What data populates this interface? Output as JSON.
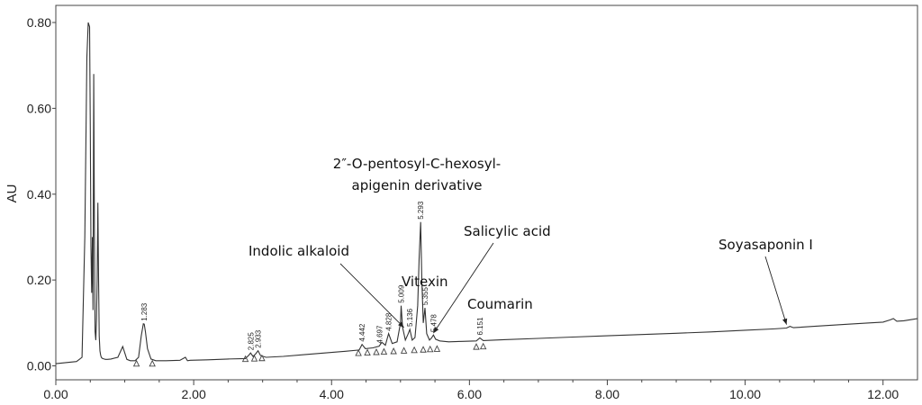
{
  "chart_data": {
    "type": "line",
    "title": "",
    "xlabel": "",
    "ylabel": "AU",
    "xlim": [
      0.0,
      12.5
    ],
    "ylim": [
      -0.05,
      0.82
    ],
    "x_ticks": [
      0,
      2,
      4,
      6,
      8,
      10,
      12
    ],
    "x_tick_labels": [
      "0.00",
      "2.00",
      "4.00",
      "6.00",
      "8.00",
      "10.00",
      "12.00"
    ],
    "y_ticks": [
      0,
      0.2,
      0.4,
      0.6,
      0.8
    ],
    "y_tick_labels": [
      "0.00",
      "0.20",
      "0.40",
      "0.60",
      "0.80"
    ],
    "grid": false,
    "series": [
      {
        "x": [
          0.0,
          0.3,
          0.38,
          0.42,
          0.45,
          0.47,
          0.49,
          0.5,
          0.51,
          0.52,
          0.53,
          0.54,
          0.55,
          0.56,
          0.57,
          0.58,
          0.59,
          0.6,
          0.61,
          0.62,
          0.63,
          0.64,
          0.65,
          0.66,
          0.67,
          0.68,
          0.7,
          0.72,
          0.75,
          0.8,
          0.9,
          0.97,
          1.0,
          1.03,
          1.08,
          1.15,
          1.2,
          1.24,
          1.27,
          1.283,
          1.3,
          1.33,
          1.38,
          1.45,
          1.6,
          1.8,
          1.88,
          1.91,
          1.95,
          2.2,
          2.5,
          2.75,
          2.8,
          2.825,
          2.86,
          2.9,
          2.933,
          2.97,
          3.05,
          3.3,
          3.6,
          3.9,
          4.2,
          4.4,
          4.442,
          4.49,
          4.6,
          4.69,
          4.73,
          4.78,
          4.828,
          4.88,
          4.95,
          5.0,
          5.009,
          5.03,
          5.07,
          5.11,
          5.136,
          5.17,
          5.21,
          5.25,
          5.27,
          5.293,
          5.31,
          5.33,
          5.355,
          5.38,
          5.42,
          5.45,
          5.478,
          5.51,
          5.57,
          5.7,
          5.9,
          6.1,
          6.151,
          6.2,
          6.5,
          7.0,
          7.5,
          8.0,
          8.5,
          9.0,
          9.5,
          10.0,
          10.4,
          10.6,
          10.65,
          10.7,
          11.0,
          11.5,
          11.8,
          12.0,
          12.1,
          12.15,
          12.2,
          12.3,
          12.5
        ],
        "y": [
          0.005,
          0.01,
          0.02,
          0.3,
          0.72,
          0.8,
          0.79,
          0.55,
          0.28,
          0.17,
          0.3,
          0.13,
          0.68,
          0.3,
          0.08,
          0.06,
          0.11,
          0.2,
          0.38,
          0.2,
          0.07,
          0.035,
          0.025,
          0.02,
          0.018,
          0.017,
          0.016,
          0.015,
          0.015,
          0.016,
          0.02,
          0.045,
          0.03,
          0.015,
          0.012,
          0.012,
          0.02,
          0.07,
          0.098,
          0.097,
          0.08,
          0.04,
          0.016,
          0.012,
          0.012,
          0.013,
          0.02,
          0.012,
          0.013,
          0.014,
          0.016,
          0.017,
          0.025,
          0.03,
          0.022,
          0.028,
          0.035,
          0.024,
          0.02,
          0.022,
          0.026,
          0.03,
          0.034,
          0.037,
          0.05,
          0.04,
          0.042,
          0.046,
          0.055,
          0.048,
          0.075,
          0.052,
          0.056,
          0.1,
          0.14,
          0.09,
          0.06,
          0.074,
          0.085,
          0.06,
          0.066,
          0.14,
          0.25,
          0.335,
          0.2,
          0.1,
          0.135,
          0.075,
          0.06,
          0.065,
          0.072,
          0.062,
          0.058,
          0.056,
          0.057,
          0.058,
          0.065,
          0.059,
          0.061,
          0.064,
          0.067,
          0.07,
          0.073,
          0.076,
          0.079,
          0.083,
          0.086,
          0.088,
          0.092,
          0.089,
          0.092,
          0.097,
          0.1,
          0.102,
          0.107,
          0.11,
          0.104,
          0.105,
          0.11
        ]
      }
    ],
    "peak_labels": [
      {
        "text": "1.283",
        "x": 1.283,
        "y": 0.098
      },
      {
        "text": "2.825",
        "x": 2.825,
        "y": 0.03
      },
      {
        "text": "2.933",
        "x": 2.933,
        "y": 0.035
      },
      {
        "text": "4.442",
        "x": 4.442,
        "y": 0.05
      },
      {
        "text": "4.697",
        "x": 4.697,
        "y": 0.046
      },
      {
        "text": "4.828",
        "x": 4.828,
        "y": 0.075
      },
      {
        "text": "5.009",
        "x": 5.009,
        "y": 0.14
      },
      {
        "text": "5.136",
        "x": 5.136,
        "y": 0.085
      },
      {
        "text": "5.293",
        "x": 5.293,
        "y": 0.335
      },
      {
        "text": "5.355",
        "x": 5.355,
        "y": 0.135
      },
      {
        "text": "5.478",
        "x": 5.478,
        "y": 0.072
      },
      {
        "text": "6.151",
        "x": 6.151,
        "y": 0.065
      }
    ],
    "baseline_markers": [
      1.17,
      1.4,
      2.75,
      2.88,
      2.99,
      4.39,
      4.52,
      4.65,
      4.76,
      4.9,
      5.05,
      5.2,
      5.33,
      5.43,
      5.53,
      6.1,
      6.2
    ],
    "annotations": [
      {
        "text_lines": [
          "Indolic alkaloid"
        ],
        "target_x": 5.05,
        "target_y": 0.085
      },
      {
        "text_lines": [
          "Vitexin"
        ],
        "target_x": 5.009,
        "target_y": 0.14
      },
      {
        "text_lines": [
          "2″-O-pentosyl-C-hexosyl-",
          "apigenin derivative"
        ],
        "target_x": 5.293,
        "target_y": 0.335
      },
      {
        "text_lines": [
          "Salicylic acid"
        ],
        "target_x": 5.478,
        "target_y": 0.072
      },
      {
        "text_lines": [
          "Coumarin"
        ],
        "target_x": 6.151,
        "target_y": 0.065
      },
      {
        "text_lines": [
          "Soyasaponin I"
        ],
        "target_x": 10.6,
        "target_y": 0.092
      }
    ]
  }
}
